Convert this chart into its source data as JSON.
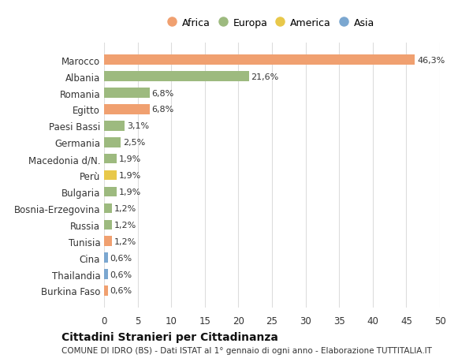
{
  "categories": [
    "Burkina Faso",
    "Thailandia",
    "Cina",
    "Tunisia",
    "Russia",
    "Bosnia-Erzegovina",
    "Bulgaria",
    "Perù",
    "Macedonia d/N.",
    "Germania",
    "Paesi Bassi",
    "Egitto",
    "Romania",
    "Albania",
    "Marocco"
  ],
  "values": [
    0.6,
    0.6,
    0.6,
    1.2,
    1.2,
    1.2,
    1.9,
    1.9,
    1.9,
    2.5,
    3.1,
    6.8,
    6.8,
    21.6,
    46.3
  ],
  "colors": [
    "#f0a070",
    "#7ba7d0",
    "#7ba7d0",
    "#f0a070",
    "#9dba7f",
    "#9dba7f",
    "#9dba7f",
    "#e8c84a",
    "#9dba7f",
    "#9dba7f",
    "#9dba7f",
    "#f0a070",
    "#9dba7f",
    "#9dba7f",
    "#f0a070"
  ],
  "labels": [
    "0,6%",
    "0,6%",
    "0,6%",
    "1,2%",
    "1,2%",
    "1,2%",
    "1,9%",
    "1,9%",
    "1,9%",
    "2,5%",
    "3,1%",
    "6,8%",
    "6,8%",
    "21,6%",
    "46,3%"
  ],
  "legend_labels": [
    "Africa",
    "Europa",
    "America",
    "Asia"
  ],
  "legend_colors": [
    "#f0a070",
    "#9dba7f",
    "#e8c84a",
    "#7ba7d0"
  ],
  "title": "Cittadini Stranieri per Cittadinanza",
  "subtitle": "COMUNE DI IDRO (BS) - Dati ISTAT al 1° gennaio di ogni anno - Elaborazione TUTTITALIA.IT",
  "xlim": [
    0,
    50
  ],
  "xticks": [
    0,
    5,
    10,
    15,
    20,
    25,
    30,
    35,
    40,
    45,
    50
  ],
  "background_color": "#ffffff",
  "grid_color": "#dddddd"
}
